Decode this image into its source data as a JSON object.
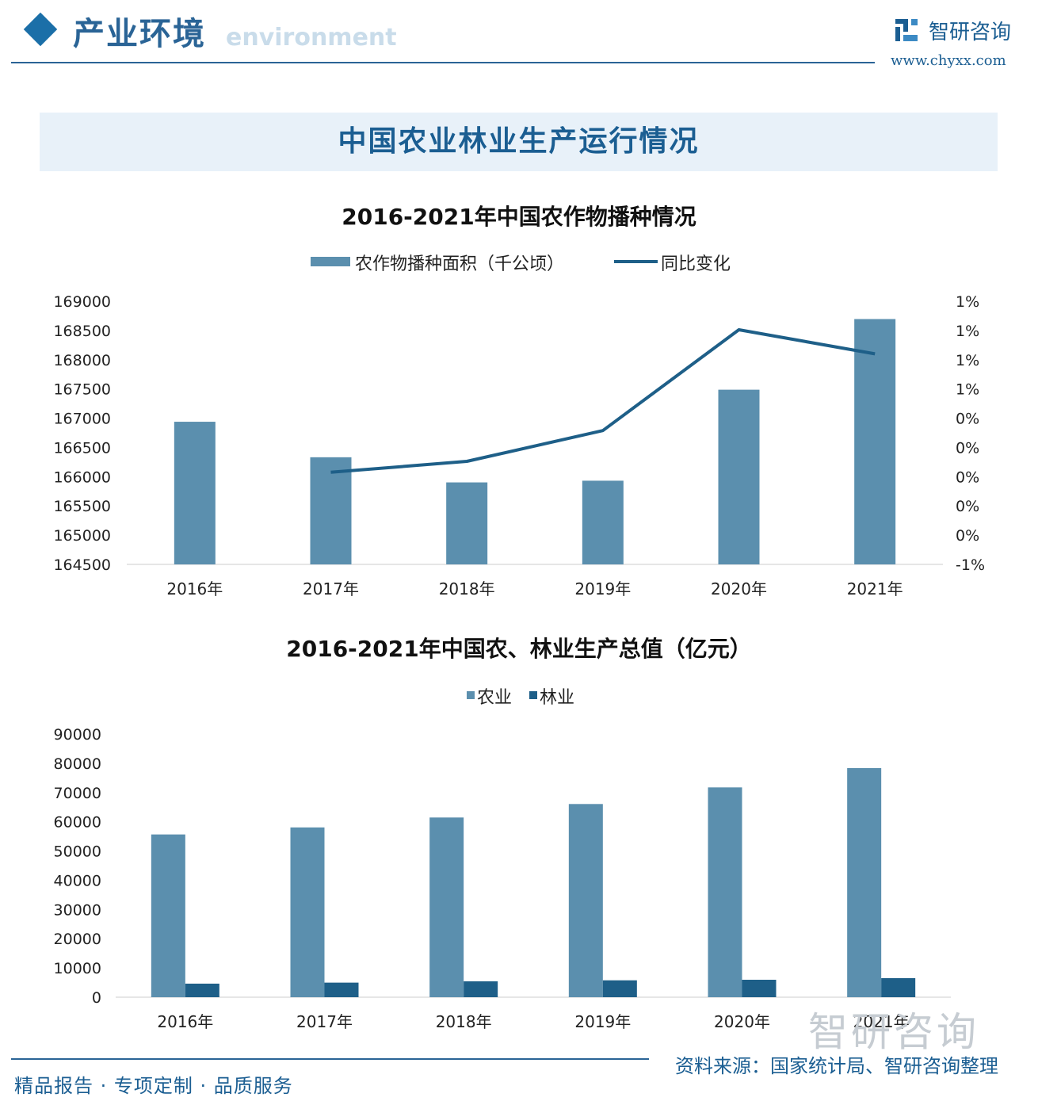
{
  "header": {
    "title": "产业环境",
    "subtitle": "environment",
    "brand_name": "智研咨询",
    "brand_url": "www.chyxx.com"
  },
  "banner": {
    "title": "中国农业林业生产运行情况"
  },
  "chart_data": [
    {
      "type": "bar",
      "title": "2016-2021年中国农作物播种情况",
      "categories": [
        "2016年",
        "2017年",
        "2018年",
        "2019年",
        "2020年",
        "2021年"
      ],
      "series": [
        {
          "name": "农作物播种面积（千公顷）",
          "type": "bar",
          "axis": "left",
          "values": [
            166939,
            166332,
            165902,
            165931,
            167487,
            168695
          ]
        },
        {
          "name": "同比变化",
          "type": "line",
          "axis": "right",
          "values": [
            null,
            -0.36,
            -0.26,
            0.02,
            0.94,
            0.72
          ]
        }
      ],
      "y_left": {
        "min": 164500,
        "max": 169000,
        "step": 500,
        "ticks": [
          "164500",
          "165000",
          "165500",
          "166000",
          "166500",
          "167000",
          "167500",
          "168000",
          "168500",
          "169000"
        ]
      },
      "y_right": {
        "ticks": [
          "-1%",
          "0%",
          "0%",
          "0%",
          "0%",
          "0%",
          "1%",
          "1%",
          "1%",
          "1%"
        ]
      },
      "legend": "top-center",
      "grid": false,
      "colors": {
        "bar": "#5b8fae",
        "line": "#1e5f88"
      }
    },
    {
      "type": "bar",
      "title": "2016-2021年中国农、林业生产总值（亿元）",
      "categories": [
        "2016年",
        "2017年",
        "2018年",
        "2019年",
        "2020年",
        "2021年"
      ],
      "series": [
        {
          "name": "农业",
          "values": [
            55660,
            58059,
            61453,
            66066,
            71748,
            78340
          ]
        },
        {
          "name": "林业",
          "values": [
            4636,
            4981,
            5432,
            5776,
            5962,
            6508
          ]
        }
      ],
      "y": {
        "min": 0,
        "max": 90000,
        "step": 10000,
        "ticks": [
          "0",
          "10000",
          "20000",
          "30000",
          "40000",
          "50000",
          "60000",
          "70000",
          "80000",
          "90000"
        ]
      },
      "legend": "top-center",
      "grid": false,
      "colors": {
        "农业": "#5b8fae",
        "林业": "#1e5f88"
      }
    }
  ],
  "footer": {
    "left": "精品报告 · 专项定制 · 品质服务",
    "right": "资料来源：国家统计局、智研咨询整理",
    "watermark": "智研咨询"
  }
}
